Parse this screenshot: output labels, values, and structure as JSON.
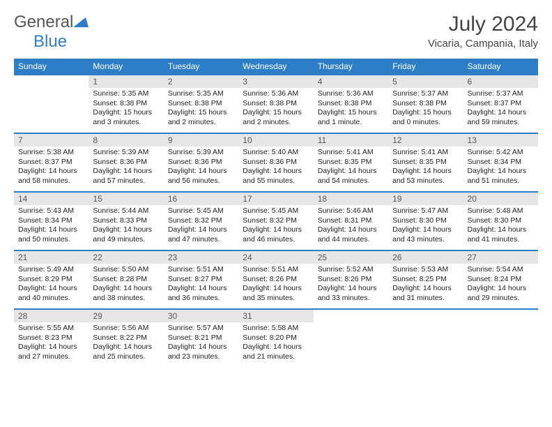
{
  "brand": {
    "name_a": "General",
    "name_b": "Blue"
  },
  "title": "July 2024",
  "location": "Vicaria, Campania, Italy",
  "colors": {
    "accent": "#2d7dc7",
    "daynum_bg": "#e6e6e6",
    "text": "#1a1a1a"
  },
  "weekdays": [
    "Sunday",
    "Monday",
    "Tuesday",
    "Wednesday",
    "Thursday",
    "Friday",
    "Saturday"
  ],
  "weeks": [
    [
      null,
      {
        "n": "1",
        "sr": "5:35 AM",
        "ss": "8:38 PM",
        "dl": "15 hours and 3 minutes."
      },
      {
        "n": "2",
        "sr": "5:35 AM",
        "ss": "8:38 PM",
        "dl": "15 hours and 2 minutes."
      },
      {
        "n": "3",
        "sr": "5:36 AM",
        "ss": "8:38 PM",
        "dl": "15 hours and 2 minutes."
      },
      {
        "n": "4",
        "sr": "5:36 AM",
        "ss": "8:38 PM",
        "dl": "15 hours and 1 minute."
      },
      {
        "n": "5",
        "sr": "5:37 AM",
        "ss": "8:38 PM",
        "dl": "15 hours and 0 minutes."
      },
      {
        "n": "6",
        "sr": "5:37 AM",
        "ss": "8:37 PM",
        "dl": "14 hours and 59 minutes."
      }
    ],
    [
      {
        "n": "7",
        "sr": "5:38 AM",
        "ss": "8:37 PM",
        "dl": "14 hours and 58 minutes."
      },
      {
        "n": "8",
        "sr": "5:39 AM",
        "ss": "8:36 PM",
        "dl": "14 hours and 57 minutes."
      },
      {
        "n": "9",
        "sr": "5:39 AM",
        "ss": "8:36 PM",
        "dl": "14 hours and 56 minutes."
      },
      {
        "n": "10",
        "sr": "5:40 AM",
        "ss": "8:36 PM",
        "dl": "14 hours and 55 minutes."
      },
      {
        "n": "11",
        "sr": "5:41 AM",
        "ss": "8:35 PM",
        "dl": "14 hours and 54 minutes."
      },
      {
        "n": "12",
        "sr": "5:41 AM",
        "ss": "8:35 PM",
        "dl": "14 hours and 53 minutes."
      },
      {
        "n": "13",
        "sr": "5:42 AM",
        "ss": "8:34 PM",
        "dl": "14 hours and 51 minutes."
      }
    ],
    [
      {
        "n": "14",
        "sr": "5:43 AM",
        "ss": "8:34 PM",
        "dl": "14 hours and 50 minutes."
      },
      {
        "n": "15",
        "sr": "5:44 AM",
        "ss": "8:33 PM",
        "dl": "14 hours and 49 minutes."
      },
      {
        "n": "16",
        "sr": "5:45 AM",
        "ss": "8:32 PM",
        "dl": "14 hours and 47 minutes."
      },
      {
        "n": "17",
        "sr": "5:45 AM",
        "ss": "8:32 PM",
        "dl": "14 hours and 46 minutes."
      },
      {
        "n": "18",
        "sr": "5:46 AM",
        "ss": "8:31 PM",
        "dl": "14 hours and 44 minutes."
      },
      {
        "n": "19",
        "sr": "5:47 AM",
        "ss": "8:30 PM",
        "dl": "14 hours and 43 minutes."
      },
      {
        "n": "20",
        "sr": "5:48 AM",
        "ss": "8:30 PM",
        "dl": "14 hours and 41 minutes."
      }
    ],
    [
      {
        "n": "21",
        "sr": "5:49 AM",
        "ss": "8:29 PM",
        "dl": "14 hours and 40 minutes."
      },
      {
        "n": "22",
        "sr": "5:50 AM",
        "ss": "8:28 PM",
        "dl": "14 hours and 38 minutes."
      },
      {
        "n": "23",
        "sr": "5:51 AM",
        "ss": "8:27 PM",
        "dl": "14 hours and 36 minutes."
      },
      {
        "n": "24",
        "sr": "5:51 AM",
        "ss": "8:26 PM",
        "dl": "14 hours and 35 minutes."
      },
      {
        "n": "25",
        "sr": "5:52 AM",
        "ss": "8:26 PM",
        "dl": "14 hours and 33 minutes."
      },
      {
        "n": "26",
        "sr": "5:53 AM",
        "ss": "8:25 PM",
        "dl": "14 hours and 31 minutes."
      },
      {
        "n": "27",
        "sr": "5:54 AM",
        "ss": "8:24 PM",
        "dl": "14 hours and 29 minutes."
      }
    ],
    [
      {
        "n": "28",
        "sr": "5:55 AM",
        "ss": "8:23 PM",
        "dl": "14 hours and 27 minutes."
      },
      {
        "n": "29",
        "sr": "5:56 AM",
        "ss": "8:22 PM",
        "dl": "14 hours and 25 minutes."
      },
      {
        "n": "30",
        "sr": "5:57 AM",
        "ss": "8:21 PM",
        "dl": "14 hours and 23 minutes."
      },
      {
        "n": "31",
        "sr": "5:58 AM",
        "ss": "8:20 PM",
        "dl": "14 hours and 21 minutes."
      },
      null,
      null,
      null
    ]
  ],
  "labels": {
    "sunrise": "Sunrise:",
    "sunset": "Sunset:",
    "daylight": "Daylight:"
  }
}
